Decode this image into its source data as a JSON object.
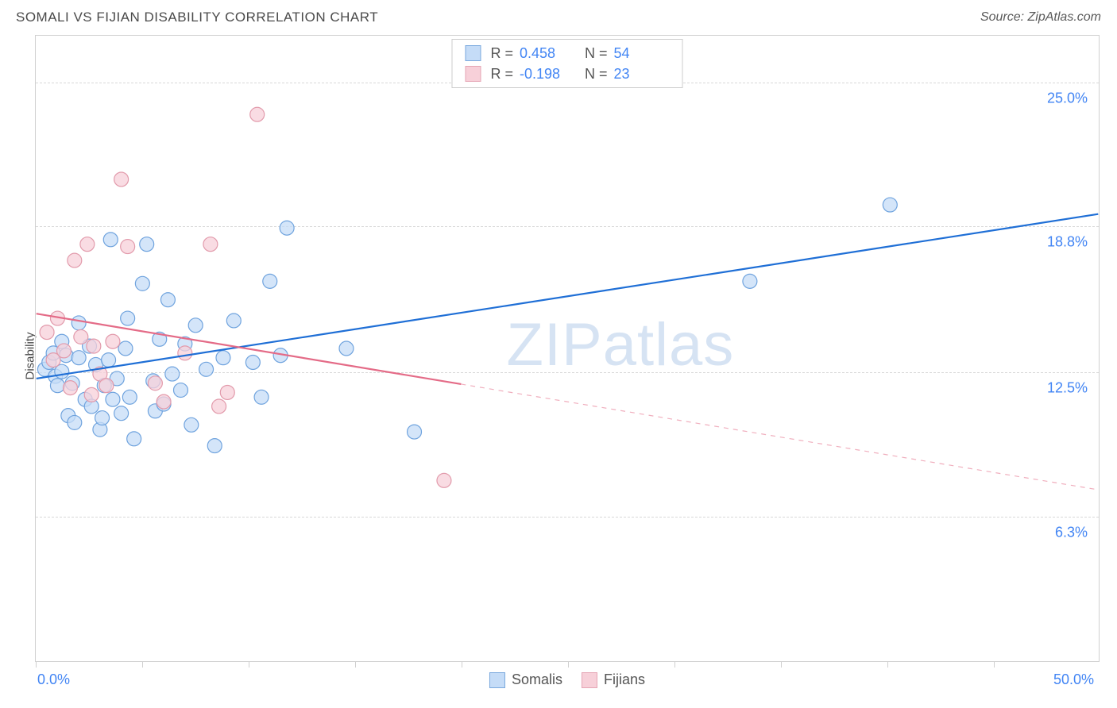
{
  "title": "SOMALI VS FIJIAN DISABILITY CORRELATION CHART",
  "source": "Source: ZipAtlas.com",
  "ylabel": "Disability",
  "watermark_a": "ZIP",
  "watermark_b": "atlas",
  "chart": {
    "type": "scatter",
    "background_color": "#ffffff",
    "grid_color": "#d8d8d8",
    "axis_color": "#d0d0d0",
    "text_color": "#4a4a4a",
    "value_color": "#4285f4",
    "xlim": [
      0,
      50
    ],
    "ylim": [
      0,
      27
    ],
    "y_ticks": [
      6.3,
      12.5,
      18.8,
      25.0
    ],
    "y_tick_labels": [
      "6.3%",
      "12.5%",
      "18.8%",
      "25.0%"
    ],
    "x_ticks": [
      0,
      5,
      10,
      15,
      20,
      25,
      30,
      35,
      40,
      45
    ],
    "x_axis_labels": {
      "min": "0.0%",
      "max": "50.0%"
    },
    "marker_radius": 9,
    "marker_stroke_width": 1.2,
    "line_width": 2.2,
    "series": [
      {
        "name": "Somalis",
        "fill": "#c5dcf7",
        "stroke": "#6fa3de",
        "line_color": "#1f6fd6",
        "r": 0.458,
        "n": 54,
        "trend": {
          "x1": 0,
          "y1": 12.2,
          "x2": 50,
          "y2": 19.3,
          "solid_to_x": 50
        },
        "points": [
          [
            0.4,
            12.6
          ],
          [
            0.6,
            12.9
          ],
          [
            0.8,
            13.3
          ],
          [
            0.9,
            12.3
          ],
          [
            1.0,
            11.9
          ],
          [
            1.2,
            12.5
          ],
          [
            1.2,
            13.8
          ],
          [
            1.4,
            13.2
          ],
          [
            1.5,
            10.6
          ],
          [
            1.7,
            12.0
          ],
          [
            1.8,
            10.3
          ],
          [
            2.0,
            13.1
          ],
          [
            2.0,
            14.6
          ],
          [
            2.3,
            11.3
          ],
          [
            2.5,
            13.6
          ],
          [
            2.6,
            11.0
          ],
          [
            2.8,
            12.8
          ],
          [
            3.0,
            10.0
          ],
          [
            3.1,
            10.5
          ],
          [
            3.2,
            11.9
          ],
          [
            3.4,
            13.0
          ],
          [
            3.5,
            18.2
          ],
          [
            3.6,
            11.3
          ],
          [
            3.8,
            12.2
          ],
          [
            4.0,
            10.7
          ],
          [
            4.2,
            13.5
          ],
          [
            4.3,
            14.8
          ],
          [
            4.4,
            11.4
          ],
          [
            4.6,
            9.6
          ],
          [
            5.0,
            16.3
          ],
          [
            5.2,
            18.0
          ],
          [
            5.5,
            12.1
          ],
          [
            5.6,
            10.8
          ],
          [
            5.8,
            13.9
          ],
          [
            6.0,
            11.1
          ],
          [
            6.2,
            15.6
          ],
          [
            6.4,
            12.4
          ],
          [
            6.8,
            11.7
          ],
          [
            7.0,
            13.7
          ],
          [
            7.3,
            10.2
          ],
          [
            7.5,
            14.5
          ],
          [
            8.0,
            12.6
          ],
          [
            8.4,
            9.3
          ],
          [
            8.8,
            13.1
          ],
          [
            9.3,
            14.7
          ],
          [
            10.2,
            12.9
          ],
          [
            10.6,
            11.4
          ],
          [
            11.5,
            13.2
          ],
          [
            11.8,
            18.7
          ],
          [
            14.6,
            13.5
          ],
          [
            17.8,
            9.9
          ],
          [
            33.6,
            16.4
          ],
          [
            40.2,
            19.7
          ],
          [
            11.0,
            16.4
          ]
        ]
      },
      {
        "name": "Fijians",
        "fill": "#f7d0d9",
        "stroke": "#e29aab",
        "line_color": "#e46b87",
        "r": -0.198,
        "n": 23,
        "trend": {
          "x1": 0,
          "y1": 15.0,
          "x2": 50,
          "y2": 7.4,
          "solid_to_x": 20
        },
        "points": [
          [
            0.5,
            14.2
          ],
          [
            0.8,
            13.0
          ],
          [
            1.0,
            14.8
          ],
          [
            1.3,
            13.4
          ],
          [
            1.6,
            11.8
          ],
          [
            1.8,
            17.3
          ],
          [
            2.1,
            14.0
          ],
          [
            2.4,
            18.0
          ],
          [
            2.7,
            13.6
          ],
          [
            2.6,
            11.5
          ],
          [
            3.0,
            12.4
          ],
          [
            3.3,
            11.9
          ],
          [
            3.6,
            13.8
          ],
          [
            4.0,
            20.8
          ],
          [
            4.3,
            17.9
          ],
          [
            5.6,
            12.0
          ],
          [
            6.0,
            11.2
          ],
          [
            7.0,
            13.3
          ],
          [
            8.2,
            18.0
          ],
          [
            8.6,
            11.0
          ],
          [
            9.0,
            11.6
          ],
          [
            10.4,
            23.6
          ],
          [
            19.2,
            7.8
          ]
        ]
      }
    ],
    "legend_bottom": [
      {
        "label": "Somalis",
        "swatch": "blue"
      },
      {
        "label": "Fijians",
        "swatch": "pink"
      }
    ]
  }
}
